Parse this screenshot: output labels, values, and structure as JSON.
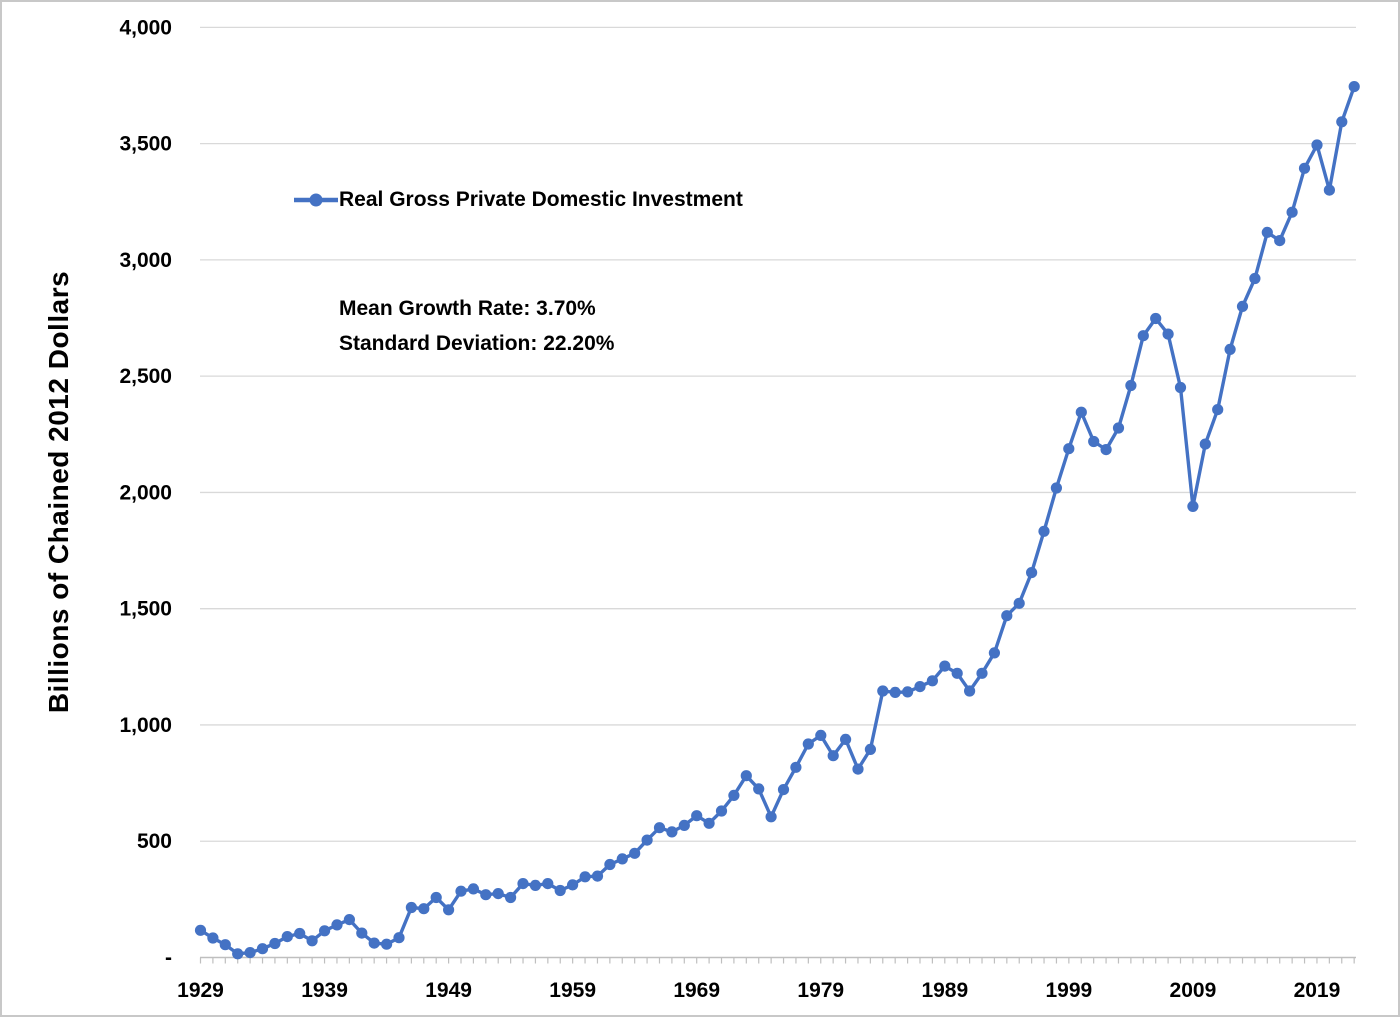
{
  "figure": {
    "y_axis_title": "Billions of Chained 2012 Dollars",
    "legend_label": "Real Gross Private Domestic Investment",
    "annotation_mean": "Mean Growth Rate: 3.70%",
    "annotation_stddev": "Standard Deviation: 22.20%"
  },
  "colors": {
    "line": "#4472C4",
    "marker": "#4472C4",
    "gridline": "#D9D9D9",
    "axis_line": "#BFBFBF",
    "tick": "#BFBFBF",
    "text": "#000000"
  },
  "chart_data": {
    "type": "line",
    "title": "",
    "ylabel": "Billions of Chained 2012 Dollars",
    "xlabel": "",
    "ylim": [
      0,
      4000
    ],
    "grid": "horizontal",
    "legend_position": "inside-top-left",
    "legend_entries": [
      "Real Gross Private Domestic Investment"
    ],
    "annotations": [
      "Mean Growth Rate: 3.70%",
      "Standard Deviation: 22.20%"
    ],
    "y_ticks": [
      {
        "value": 0,
        "label": "-"
      },
      {
        "value": 500,
        "label": "500"
      },
      {
        "value": 1000,
        "label": "1,000"
      },
      {
        "value": 1500,
        "label": "1,500"
      },
      {
        "value": 2000,
        "label": "2,000"
      },
      {
        "value": 2500,
        "label": "2,500"
      },
      {
        "value": 3000,
        "label": "3,000"
      },
      {
        "value": 3500,
        "label": "3,500"
      },
      {
        "value": 4000,
        "label": "4,000"
      }
    ],
    "x_tick_labels": [
      "1929",
      "1939",
      "1949",
      "1959",
      "1969",
      "1979",
      "1989",
      "1999",
      "2009",
      "2019"
    ],
    "series": [
      {
        "name": "Real Gross Private Domestic Investment",
        "color": "#4472C4",
        "marker": "circle",
        "x": [
          1929,
          1930,
          1931,
          1932,
          1933,
          1934,
          1935,
          1936,
          1937,
          1938,
          1939,
          1940,
          1941,
          1942,
          1943,
          1944,
          1945,
          1946,
          1947,
          1948,
          1949,
          1950,
          1951,
          1952,
          1953,
          1954,
          1955,
          1956,
          1957,
          1958,
          1959,
          1960,
          1961,
          1962,
          1963,
          1964,
          1965,
          1966,
          1967,
          1968,
          1969,
          1970,
          1971,
          1972,
          1973,
          1974,
          1975,
          1976,
          1977,
          1978,
          1979,
          1980,
          1981,
          1982,
          1983,
          1984,
          1985,
          1986,
          1987,
          1988,
          1989,
          1990,
          1991,
          1992,
          1993,
          1994,
          1995,
          1996,
          1997,
          1998,
          1999,
          2000,
          2001,
          2002,
          2003,
          2004,
          2005,
          2006,
          2007,
          2008,
          2009,
          2010,
          2011,
          2012,
          2013,
          2014,
          2015,
          2016,
          2017,
          2018,
          2019,
          2020,
          2021,
          2022
        ],
        "values": [
          117,
          84,
          55,
          16,
          21,
          38,
          60,
          90,
          103,
          72,
          115,
          140,
          163,
          105,
          62,
          57,
          85,
          215,
          210,
          258,
          205,
          285,
          295,
          270,
          275,
          258,
          318,
          310,
          318,
          288,
          312,
          347,
          350,
          400,
          424,
          448,
          505,
          558,
          540,
          568,
          610,
          577,
          630,
          697,
          782,
          725,
          605,
          722,
          818,
          918,
          955,
          868,
          938,
          810,
          895,
          1146,
          1140,
          1142,
          1165,
          1190,
          1253,
          1222,
          1146,
          1222,
          1310,
          1470,
          1523,
          1655,
          1833,
          2019,
          2188,
          2345,
          2219,
          2184,
          2277,
          2460,
          2674,
          2748,
          2681,
          2451,
          1940,
          2208,
          2356,
          2615,
          2800,
          2920,
          3118,
          3083,
          3205,
          3394,
          3494,
          3300,
          3594,
          3745
        ]
      }
    ]
  }
}
